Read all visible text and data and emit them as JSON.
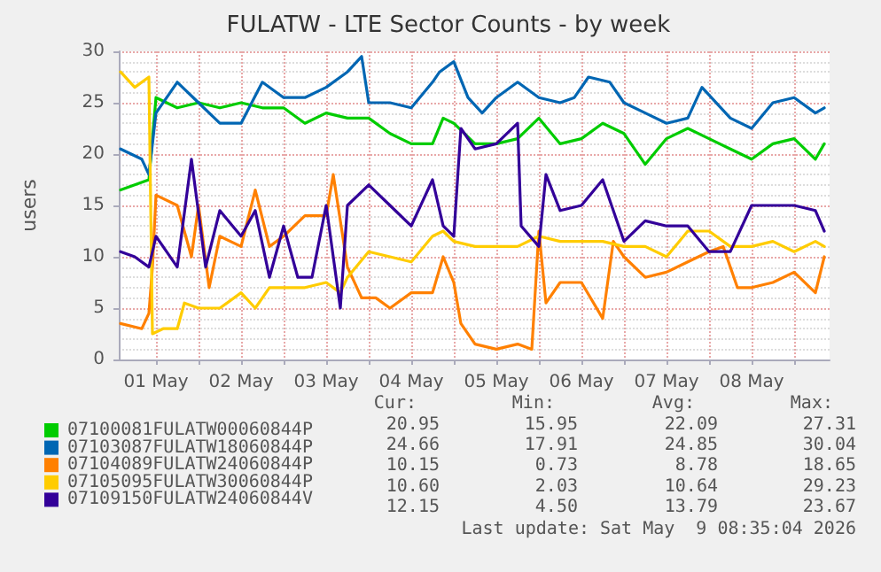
{
  "chart_data": {
    "type": "line",
    "title": "FULATW - LTE Sector Counts - by week",
    "ylabel": "users",
    "xlim": [
      "2026-05-01T01:30",
      "2026-05-09T10:00"
    ],
    "xticks": [
      {
        "value": "2026-05-01T12:00",
        "label": "01 May"
      },
      {
        "value": "2026-05-02T00:00",
        "label": null
      },
      {
        "value": "2026-05-02T12:00",
        "label": "02 May"
      },
      {
        "value": "2026-05-03T00:00",
        "label": null
      },
      {
        "value": "2026-05-03T12:00",
        "label": "03 May"
      },
      {
        "value": "2026-05-04T00:00",
        "label": null
      },
      {
        "value": "2026-05-04T12:00",
        "label": "04 May"
      },
      {
        "value": "2026-05-05T00:00",
        "label": null
      },
      {
        "value": "2026-05-05T12:00",
        "label": "05 May"
      },
      {
        "value": "2026-05-06T00:00",
        "label": null
      },
      {
        "value": "2026-05-06T12:00",
        "label": "06 May"
      },
      {
        "value": "2026-05-07T00:00",
        "label": null
      },
      {
        "value": "2026-05-07T12:00",
        "label": "07 May"
      },
      {
        "value": "2026-05-08T00:00",
        "label": null
      },
      {
        "value": "2026-05-08T12:00",
        "label": "08 May"
      },
      {
        "value": "2026-05-09T00:00",
        "label": null
      }
    ],
    "ylim": [
      0,
      30
    ],
    "yticks": [
      0,
      5,
      10,
      15,
      20,
      25,
      30
    ],
    "grid": true,
    "legend": "bottom",
    "series": [
      {
        "name": "07100081FULATW00060844P",
        "color": "#00cc00",
        "x": [
          "2026-05-01T02:00",
          "2026-05-01T10:00",
          "2026-05-01T12:00",
          "2026-05-01T18:00",
          "2026-05-02T00:00",
          "2026-05-02T06:00",
          "2026-05-02T12:00",
          "2026-05-02T18:00",
          "2026-05-03T00:00",
          "2026-05-03T06:00",
          "2026-05-03T12:00",
          "2026-05-03T18:00",
          "2026-05-04T00:00",
          "2026-05-04T06:00",
          "2026-05-04T12:00",
          "2026-05-04T18:00",
          "2026-05-04T21:00",
          "2026-05-05T00:00",
          "2026-05-05T06:00",
          "2026-05-05T12:00",
          "2026-05-05T18:00",
          "2026-05-06T00:00",
          "2026-05-06T06:00",
          "2026-05-06T12:00",
          "2026-05-06T18:00",
          "2026-05-07T00:00",
          "2026-05-07T06:00",
          "2026-05-07T12:00",
          "2026-05-07T18:00",
          "2026-05-08T00:00",
          "2026-05-08T06:00",
          "2026-05-08T12:00",
          "2026-05-08T18:00",
          "2026-05-09T00:00",
          "2026-05-09T06:00",
          "2026-05-09T08:30"
        ],
        "values": [
          16.5,
          17.5,
          25.5,
          24.5,
          25,
          24.5,
          25,
          24.5,
          24.5,
          23,
          24,
          23.5,
          23.5,
          22,
          21,
          21,
          23.5,
          23,
          21,
          21,
          21.5,
          23.5,
          21,
          21.5,
          23,
          22,
          19,
          21.5,
          22.5,
          21.5,
          20.5,
          19.5,
          21,
          21.5,
          19.5,
          21
        ]
      },
      {
        "name": "07103087FULATW18060844P",
        "color": "#0066b3",
        "x": [
          "2026-05-01T02:00",
          "2026-05-01T08:00",
          "2026-05-01T10:00",
          "2026-05-01T12:00",
          "2026-05-01T18:00",
          "2026-05-02T00:00",
          "2026-05-02T06:00",
          "2026-05-02T12:00",
          "2026-05-02T18:00",
          "2026-05-03T00:00",
          "2026-05-03T06:00",
          "2026-05-03T12:00",
          "2026-05-03T18:00",
          "2026-05-03T22:00",
          "2026-05-04T00:00",
          "2026-05-04T06:00",
          "2026-05-04T12:00",
          "2026-05-04T18:00",
          "2026-05-04T20:00",
          "2026-05-05T00:00",
          "2026-05-05T04:00",
          "2026-05-05T08:00",
          "2026-05-05T12:00",
          "2026-05-05T18:00",
          "2026-05-06T00:00",
          "2026-05-06T06:00",
          "2026-05-06T10:00",
          "2026-05-06T14:00",
          "2026-05-06T20:00",
          "2026-05-07T00:00",
          "2026-05-07T06:00",
          "2026-05-07T12:00",
          "2026-05-07T18:00",
          "2026-05-07T22:00",
          "2026-05-08T06:00",
          "2026-05-08T12:00",
          "2026-05-08T18:00",
          "2026-05-09T00:00",
          "2026-05-09T06:00",
          "2026-05-09T08:30"
        ],
        "values": [
          20.5,
          19.5,
          18,
          24,
          27,
          25,
          23,
          23,
          27,
          25.5,
          25.5,
          26.5,
          28,
          29.5,
          25,
          25,
          24.5,
          27,
          28,
          29,
          25.5,
          24,
          25.5,
          27,
          25.5,
          25,
          25.5,
          27.5,
          27,
          25,
          24,
          23,
          23.5,
          26.5,
          23.5,
          22.5,
          25,
          25.5,
          24,
          24.5
        ]
      },
      {
        "name": "07104089FULATW24060844P",
        "color": "#ff8000",
        "x": [
          "2026-05-01T02:00",
          "2026-05-01T08:00",
          "2026-05-01T10:00",
          "2026-05-01T11:00",
          "2026-05-01T12:00",
          "2026-05-01T18:00",
          "2026-05-01T22:00",
          "2026-05-02T00:00",
          "2026-05-02T03:00",
          "2026-05-02T06:00",
          "2026-05-02T12:00",
          "2026-05-02T16:00",
          "2026-05-02T20:00",
          "2026-05-03T00:00",
          "2026-05-03T06:00",
          "2026-05-03T12:00",
          "2026-05-03T14:00",
          "2026-05-03T18:00",
          "2026-05-03T22:00",
          "2026-05-04T02:00",
          "2026-05-04T06:00",
          "2026-05-04T12:00",
          "2026-05-04T18:00",
          "2026-05-04T21:00",
          "2026-05-05T00:00",
          "2026-05-05T02:00",
          "2026-05-05T06:00",
          "2026-05-05T12:00",
          "2026-05-05T18:00",
          "2026-05-05T22:00",
          "2026-05-06T00:00",
          "2026-05-06T02:00",
          "2026-05-06T06:00",
          "2026-05-06T12:00",
          "2026-05-06T18:00",
          "2026-05-06T21:00",
          "2026-05-07T00:00",
          "2026-05-07T06:00",
          "2026-05-07T12:00",
          "2026-05-07T18:00",
          "2026-05-08T00:00",
          "2026-05-08T04:00",
          "2026-05-08T08:00",
          "2026-05-08T12:00",
          "2026-05-08T18:00",
          "2026-05-09T00:00",
          "2026-05-09T06:00",
          "2026-05-09T08:30"
        ],
        "values": [
          3.5,
          3,
          4.5,
          9,
          16,
          15,
          10,
          15,
          7,
          12,
          11,
          16.5,
          11,
          12,
          14,
          14,
          18,
          9,
          6,
          6,
          5,
          6.5,
          6.5,
          10,
          7.5,
          3.5,
          1.5,
          1,
          1.5,
          1,
          12.5,
          5.5,
          7.5,
          7.5,
          4,
          11.5,
          10,
          8,
          8.5,
          9.5,
          10.5,
          11,
          7,
          7,
          7.5,
          8.5,
          6.5,
          10
        ]
      },
      {
        "name": "07105095FULATW30060844P",
        "color": "#ffcc00",
        "x": [
          "2026-05-01T02:00",
          "2026-05-01T06:00",
          "2026-05-01T10:00",
          "2026-05-01T11:00",
          "2026-05-01T14:00",
          "2026-05-01T18:00",
          "2026-05-01T20:00",
          "2026-05-02T00:00",
          "2026-05-02T06:00",
          "2026-05-02T12:00",
          "2026-05-02T16:00",
          "2026-05-02T20:00",
          "2026-05-03T00:00",
          "2026-05-03T06:00",
          "2026-05-03T12:00",
          "2026-05-03T16:00",
          "2026-05-03T18:00",
          "2026-05-04T00:00",
          "2026-05-04T06:00",
          "2026-05-04T12:00",
          "2026-05-04T18:00",
          "2026-05-04T21:00",
          "2026-05-05T00:00",
          "2026-05-05T06:00",
          "2026-05-05T12:00",
          "2026-05-05T18:00",
          "2026-05-06T00:00",
          "2026-05-06T06:00",
          "2026-05-06T12:00",
          "2026-05-06T18:00",
          "2026-05-07T00:00",
          "2026-05-07T06:00",
          "2026-05-07T12:00",
          "2026-05-07T18:00",
          "2026-05-08T00:00",
          "2026-05-08T06:00",
          "2026-05-08T12:00",
          "2026-05-08T18:00",
          "2026-05-09T00:00",
          "2026-05-09T06:00",
          "2026-05-09T08:30"
        ],
        "values": [
          28,
          26.5,
          27.5,
          2.5,
          3,
          3,
          5.5,
          5,
          5,
          6.5,
          5,
          7,
          7,
          7,
          7.5,
          6.5,
          8,
          10.5,
          10,
          9.5,
          12,
          12.5,
          11.5,
          11,
          11,
          11,
          12,
          11.5,
          11.5,
          11.5,
          11,
          11,
          10,
          12.5,
          12.5,
          11,
          11,
          11.5,
          10.5,
          11.5,
          11
        ]
      },
      {
        "name": "07109150FULATW24060844V",
        "color": "#330099",
        "x": [
          "2026-05-01T02:00",
          "2026-05-01T06:00",
          "2026-05-01T10:00",
          "2026-05-01T12:00",
          "2026-05-01T18:00",
          "2026-05-01T22:00",
          "2026-05-02T02:00",
          "2026-05-02T06:00",
          "2026-05-02T12:00",
          "2026-05-02T16:00",
          "2026-05-02T20:00",
          "2026-05-03T00:00",
          "2026-05-03T04:00",
          "2026-05-03T08:00",
          "2026-05-03T12:00",
          "2026-05-03T16:00",
          "2026-05-03T18:00",
          "2026-05-04T00:00",
          "2026-05-04T06:00",
          "2026-05-04T12:00",
          "2026-05-04T18:00",
          "2026-05-04T21:00",
          "2026-05-05T00:00",
          "2026-05-05T02:00",
          "2026-05-05T06:00",
          "2026-05-05T12:00",
          "2026-05-05T18:00",
          "2026-05-05T19:00",
          "2026-05-06T00:00",
          "2026-05-06T02:00",
          "2026-05-06T06:00",
          "2026-05-06T12:00",
          "2026-05-06T18:00",
          "2026-05-07T00:00",
          "2026-05-07T06:00",
          "2026-05-07T12:00",
          "2026-05-07T18:00",
          "2026-05-08T00:00",
          "2026-05-08T06:00",
          "2026-05-08T12:00",
          "2026-05-08T18:00",
          "2026-05-09T00:00",
          "2026-05-09T06:00",
          "2026-05-09T08:30"
        ],
        "values": [
          10.5,
          10,
          9,
          12,
          9,
          19.5,
          9,
          14.5,
          12,
          14.5,
          8,
          13,
          8,
          8,
          15,
          5,
          15,
          17,
          15,
          13,
          17.5,
          13,
          12,
          22.5,
          20.5,
          21,
          23,
          13,
          11,
          18,
          14.5,
          15,
          17.5,
          11.5,
          13.5,
          13,
          13,
          10.5,
          10.5,
          15,
          15,
          15,
          14.5,
          12.5
        ]
      }
    ],
    "annotations": [
      "Cur:",
      "Min:",
      "Avg:",
      "Max:",
      "20.95",
      "15.95",
      "22.09",
      "27.31",
      "24.66",
      "17.91",
      "24.85",
      "30.04",
      "10.15",
      "0.73",
      "8.78",
      "18.65",
      "10.60",
      "2.03",
      "10.64",
      "29.23",
      "12.15",
      "4.50",
      "13.79",
      "23.67",
      "Last update: Sat May  9 08:35:04 2026"
    ]
  }
}
